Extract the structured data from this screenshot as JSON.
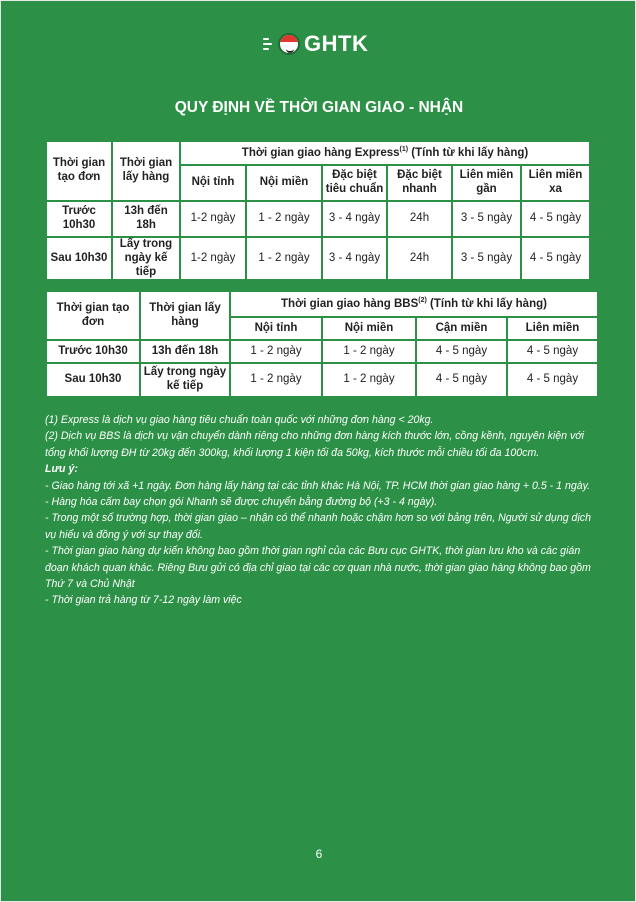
{
  "logo": {
    "text": "GHTK"
  },
  "title": "QUY ĐỊNH VỀ THỜI GIAN GIAO - NHẬN",
  "express_table": {
    "col1": "Thời gian tạo đơn",
    "col2": "Thời gian lấy hàng",
    "group_header": "Thời gian giao hàng Express",
    "group_sup": "(1)",
    "group_suffix": " (Tính từ khi lấy hàng)",
    "subheaders": [
      "Nội tỉnh",
      "Nội miền",
      "Đặc biệt tiêu chuẩn",
      "Đặc biệt nhanh",
      "Liên miền gần",
      "Liên miền xa"
    ],
    "rows": [
      {
        "create": "Trước 10h30",
        "pickup": "13h đến 18h",
        "values": [
          "1-2 ngày",
          "1 - 2 ngày",
          "3 - 4 ngày",
          "24h",
          "3 - 5 ngày",
          "4 - 5 ngày"
        ]
      },
      {
        "create": "Sau 10h30",
        "pickup": "Lấy trong ngày kế tiếp",
        "values": [
          "1-2 ngày",
          "1 - 2 ngày",
          "3 - 4 ngày",
          "24h",
          "3 - 5  ngày",
          "4 - 5 ngày"
        ]
      }
    ]
  },
  "bbs_table": {
    "col1": "Thời gian tạo đơn",
    "col2": "Thời gian lấy hàng",
    "group_header": "Thời gian giao hàng BBS",
    "group_sup": "(2)",
    "group_suffix": " (Tính từ khi lấy hàng)",
    "subheaders": [
      "Nội tỉnh",
      "Nội miền",
      "Cận miền",
      "Liên miền"
    ],
    "rows": [
      {
        "create": "Trước 10h30",
        "pickup": "13h đến 18h",
        "values": [
          "1 - 2 ngày",
          "1 - 2 ngày",
          "4 - 5 ngày",
          "4 - 5 ngày"
        ]
      },
      {
        "create": "Sau 10h30",
        "pickup": "Lấy trong ngày kế tiếp",
        "values": [
          "1 - 2 ngày",
          "1 - 2 ngày",
          "4 - 5 ngày",
          "4 - 5 ngày"
        ]
      }
    ]
  },
  "notes": {
    "n1": "(1) Express là dịch vụ giao hàng tiêu chuẩn toàn quốc với những đơn hàng < 20kg.",
    "n2": "(2) Dịch vụ BBS là dịch vụ vận chuyển dành riêng cho những đơn hàng kích thước lớn, cồng kềnh, nguyên kiện với tổng khối lượng ĐH từ 20kg đến 300kg, khối lượng 1 kiện tối đa 50kg, kích thước mỗi chiều tối đa 100cm.",
    "heading": "Lưu ý:",
    "items": [
      "- Giao hàng tới xã +1 ngày. Đơn hàng lấy hàng tại các tỉnh khác Hà Nội, TP. HCM thời gian giao hàng + 0.5 - 1 ngày.",
      "- Hàng hóa cấm bay chọn gói Nhanh sẽ được chuyển bằng đường bộ (+3 - 4 ngày).",
      "- Trong một số trường hợp, thời gian giao – nhận có thể nhanh hoặc chậm hơn so với bảng trên, Người sử dụng dịch vụ hiểu và đồng ý với sự thay đổi.",
      "- Thời gian giao hàng dự kiến không bao gồm thời gian nghỉ của các Bưu cục GHTK, thời gian lưu kho và các gián đoạn khách quan khác. Riêng Bưu gửi có địa chỉ giao tại các cơ quan nhà nước, thời gian giao hàng không bao gồm Thứ 7 và Chủ Nhật",
      "- Thời gian trả hàng từ 7-12 ngày làm việc"
    ]
  },
  "page_number": "6",
  "colors": {
    "background": "#2c9146",
    "table": "#ffffff"
  }
}
